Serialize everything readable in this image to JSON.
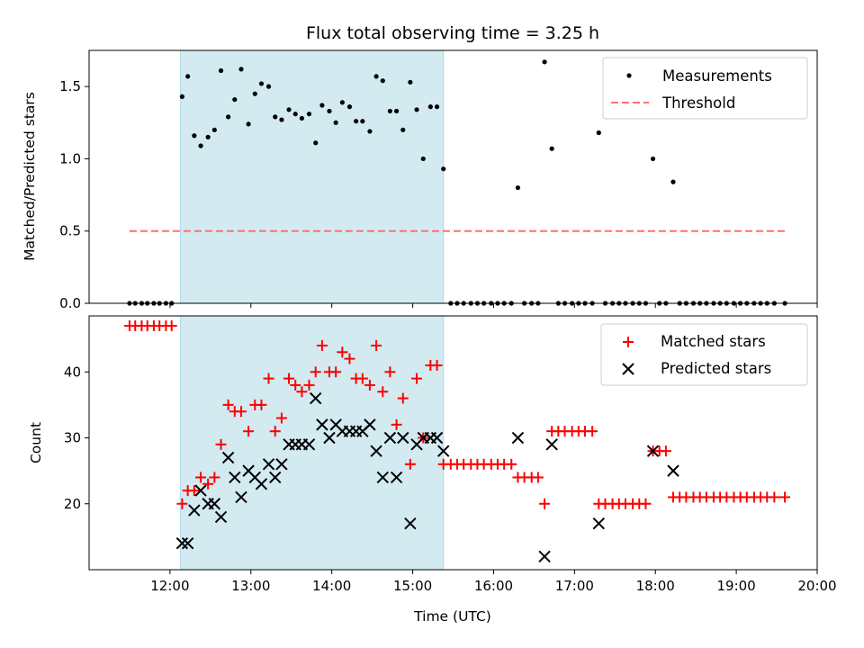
{
  "chart_data": [
    {
      "type": "scatter",
      "title": "Flux total observing time = 3.25 h",
      "ylabel": "Matched/Predicted stars",
      "xlabel": "",
      "xlim": [
        11.0,
        20.0
      ],
      "ylim": [
        0.0,
        1.75
      ],
      "yticks": [
        "0.0",
        "0.5",
        "1.0",
        "1.5"
      ],
      "grid": false,
      "legend_position": "top-right",
      "highlight_span": [
        12.13,
        15.38
      ],
      "highlight_color": "#d3eaf1",
      "threshold": {
        "name": "Threshold",
        "value": 0.5,
        "x_range": [
          11.5,
          19.6
        ],
        "color": "#ff6f6f"
      },
      "series": [
        {
          "name": "Measurements",
          "marker": "dot",
          "color": "#000000",
          "x": [
            11.5,
            11.57,
            11.65,
            11.72,
            11.8,
            11.87,
            11.95,
            12.02,
            12.15,
            12.22,
            12.3,
            12.38,
            12.47,
            12.55,
            12.63,
            12.72,
            12.8,
            12.88,
            12.97,
            13.05,
            13.13,
            13.22,
            13.3,
            13.38,
            13.47,
            13.55,
            13.63,
            13.72,
            13.8,
            13.88,
            13.97,
            14.05,
            14.13,
            14.22,
            14.3,
            14.38,
            14.47,
            14.55,
            14.63,
            14.72,
            14.8,
            14.88,
            14.97,
            15.05,
            15.13,
            15.22,
            15.3,
            15.38,
            15.47,
            15.55,
            15.63,
            15.72,
            15.8,
            15.88,
            15.97,
            16.05,
            16.13,
            16.22,
            16.3,
            16.38,
            16.47,
            16.55,
            16.63,
            16.72,
            16.8,
            16.88,
            16.97,
            17.05,
            17.13,
            17.22,
            17.3,
            17.38,
            17.47,
            17.55,
            17.63,
            17.72,
            17.8,
            17.88,
            17.97,
            18.05,
            18.13,
            18.22,
            18.3,
            18.38,
            18.47,
            18.55,
            18.63,
            18.72,
            18.8,
            18.88,
            18.97,
            19.05,
            19.13,
            19.22,
            19.3,
            19.38,
            19.47,
            19.6
          ],
          "y": [
            0,
            0,
            0,
            0,
            0,
            0,
            0,
            0,
            1.43,
            1.57,
            1.16,
            1.09,
            1.15,
            1.2,
            1.61,
            1.29,
            1.41,
            1.62,
            1.24,
            1.45,
            1.52,
            1.5,
            1.29,
            1.27,
            1.34,
            1.31,
            1.28,
            1.31,
            1.11,
            1.37,
            1.33,
            1.25,
            1.39,
            1.36,
            1.26,
            1.26,
            1.19,
            1.57,
            1.54,
            1.33,
            1.33,
            1.2,
            1.53,
            1.34,
            1.0,
            1.36,
            1.36,
            0.93,
            0,
            0,
            0,
            0,
            0,
            0,
            0,
            0,
            0,
            0,
            0.8,
            0,
            0,
            0,
            1.67,
            1.07,
            0,
            0,
            0,
            0,
            0,
            0,
            1.18,
            0,
            0,
            0,
            0,
            0,
            0,
            0,
            1.0,
            0,
            0,
            0.84,
            0,
            0,
            0,
            0,
            0,
            0,
            0,
            0,
            0,
            0,
            0,
            0,
            0,
            0,
            0,
            0
          ]
        }
      ]
    },
    {
      "type": "scatter",
      "title": "",
      "ylabel": "Count",
      "xlabel": "Time (UTC)",
      "xlim": [
        11.0,
        20.0
      ],
      "ylim": [
        10.0,
        48.5
      ],
      "xticks": [
        "12:00",
        "13:00",
        "14:00",
        "15:00",
        "16:00",
        "17:00",
        "18:00",
        "19:00",
        "20:00"
      ],
      "yticks": [
        "20",
        "30",
        "40"
      ],
      "grid": false,
      "legend_position": "top-right",
      "highlight_span": [
        12.13,
        15.38
      ],
      "highlight_color": "#d3eaf1",
      "series": [
        {
          "name": "Matched stars",
          "marker": "plus",
          "color": "#ff0000",
          "x": [
            11.5,
            11.57,
            11.65,
            11.72,
            11.8,
            11.87,
            11.95,
            12.02,
            12.15,
            12.22,
            12.3,
            12.38,
            12.47,
            12.55,
            12.63,
            12.72,
            12.8,
            12.88,
            12.97,
            13.05,
            13.13,
            13.22,
            13.3,
            13.38,
            13.47,
            13.55,
            13.63,
            13.72,
            13.8,
            13.88,
            13.97,
            14.05,
            14.13,
            14.22,
            14.3,
            14.38,
            14.47,
            14.55,
            14.63,
            14.72,
            14.8,
            14.88,
            14.97,
            15.05,
            15.13,
            15.22,
            15.3,
            15.38,
            15.47,
            15.55,
            15.63,
            15.72,
            15.8,
            15.88,
            15.97,
            16.05,
            16.13,
            16.22,
            16.3,
            16.38,
            16.47,
            16.55,
            16.63,
            16.72,
            16.8,
            16.88,
            16.97,
            17.05,
            17.13,
            17.22,
            17.3,
            17.38,
            17.47,
            17.55,
            17.63,
            17.72,
            17.8,
            17.88,
            17.97,
            18.05,
            18.13,
            18.22,
            18.3,
            18.38,
            18.47,
            18.55,
            18.63,
            18.72,
            18.8,
            18.88,
            18.97,
            19.05,
            19.13,
            19.22,
            19.3,
            19.38,
            19.47,
            19.6
          ],
          "y": [
            47,
            47,
            47,
            47,
            47,
            47,
            47,
            47,
            20,
            22,
            22,
            24,
            23,
            24,
            29,
            35,
            34,
            34,
            31,
            35,
            35,
            39,
            31,
            33,
            39,
            38,
            37,
            38,
            40,
            44,
            40,
            40,
            43,
            42,
            39,
            39,
            38,
            44,
            37,
            40,
            32,
            36,
            26,
            39,
            30,
            41,
            41,
            26,
            26,
            26,
            26,
            26,
            26,
            26,
            26,
            26,
            26,
            26,
            24,
            24,
            24,
            24,
            20,
            31,
            31,
            31,
            31,
            31,
            31,
            31,
            20,
            20,
            20,
            20,
            20,
            20,
            20,
            20,
            28,
            28,
            28,
            21,
            21,
            21,
            21,
            21,
            21,
            21,
            21,
            21,
            21,
            21,
            21,
            21,
            21,
            21,
            21,
            21
          ]
        },
        {
          "name": "Predicted stars",
          "marker": "x",
          "color": "#000000",
          "x": [
            12.15,
            12.22,
            12.3,
            12.38,
            12.47,
            12.55,
            12.63,
            12.72,
            12.8,
            12.88,
            12.97,
            13.05,
            13.13,
            13.22,
            13.3,
            13.38,
            13.47,
            13.55,
            13.63,
            13.72,
            13.8,
            13.88,
            13.97,
            14.05,
            14.13,
            14.22,
            14.3,
            14.38,
            14.47,
            14.55,
            14.63,
            14.72,
            14.8,
            14.88,
            14.97,
            15.05,
            15.13,
            15.22,
            15.3,
            15.38,
            16.3,
            16.63,
            16.72,
            17.3,
            17.97,
            18.22
          ],
          "y": [
            14,
            14,
            19,
            22,
            20,
            20,
            18,
            27,
            24,
            21,
            25,
            24,
            23,
            26,
            24,
            26,
            29,
            29,
            29,
            29,
            36,
            32,
            30,
            32,
            31,
            31,
            31,
            31,
            32,
            28,
            24,
            30,
            24,
            30,
            17,
            29,
            30,
            30,
            30,
            28,
            30,
            12,
            29,
            17,
            28,
            25
          ]
        }
      ]
    }
  ]
}
